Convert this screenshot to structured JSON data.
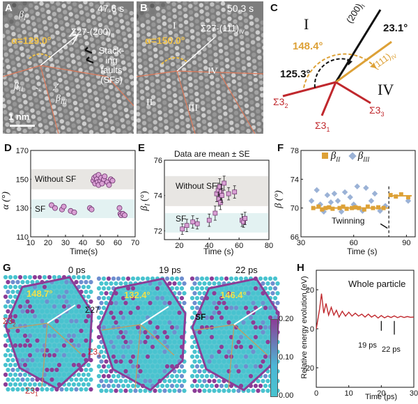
{
  "panels": {
    "A": {
      "label": "A",
      "time": "47.6 s",
      "alpha": "α=129.0°",
      "sigma": "Σ27-(200)",
      "sigma_sub": "II",
      "beta_I": "β",
      "beta_I_sub": "I",
      "beta_II": "β",
      "beta_II_sub": "II",
      "beta_III": "β",
      "beta_III_sub": "III",
      "sf_note": [
        "Stack-",
        "ing",
        "faults",
        "(SFs)"
      ],
      "scalebar": "1 nm"
    },
    "B": {
      "label": "B",
      "time": "50.3 s",
      "alpha": "α=150.0°",
      "sigma": "Σ27-(111)",
      "sigma_sub": "IV",
      "grains": [
        "I",
        "II",
        "III",
        "IV"
      ]
    },
    "C": {
      "label": "C",
      "grain_I": "I",
      "grain_IV": "IV",
      "plane1": "(200)",
      "plane1_sub": "I",
      "plane2": "(111)",
      "plane2_sub": "IV",
      "angle1": "23.1°",
      "angle2": "148.4°",
      "angle3": "125.3°",
      "s32": "Σ3",
      "s32_sub": "2",
      "s33": "Σ3",
      "s33_sub": "3",
      "s31": "Σ3",
      "s31_sub": "1"
    },
    "D": {
      "label": "D",
      "xlabel": "Time(s)",
      "ylabel": "α (°)",
      "region_top": "Without SF",
      "region_bottom": "SF",
      "xticks": [
        "10",
        "20",
        "30",
        "40",
        "50",
        "60",
        "70"
      ],
      "yticks": [
        "110",
        "130",
        "150",
        "170"
      ]
    },
    "E": {
      "label": "E",
      "title": "Data are mean ± SE",
      "xlabel": "Time (s)",
      "ylabel": "β",
      "ylabel_sub": "I",
      "ylabel_unit": " (°)",
      "region_top": "Without SF",
      "region_bottom": "SF",
      "xticks": [
        "20",
        "40",
        "60",
        "80"
      ],
      "yticks": [
        "72",
        "74",
        "76"
      ]
    },
    "F": {
      "label": "F",
      "xlabel": "Time (s)",
      "ylabel": "β (°)",
      "legend": [
        "β",
        "β"
      ],
      "legend_sub": [
        "II",
        "III"
      ],
      "annotation": "Twinning",
      "xticks": [
        "30",
        "60",
        "90"
      ],
      "yticks": [
        "66",
        "70",
        "74",
        "78"
      ]
    },
    "G": {
      "label": "G",
      "times": [
        "0 ps",
        "19 ps",
        "22 ps"
      ],
      "angles": [
        "148.7°",
        "132.4°",
        "146.4°"
      ],
      "sigma27": "Σ27",
      "sf": "SF",
      "s32": "Σ3",
      "s32_sub": "2",
      "s33": "Σ3",
      "s33_sub": "3",
      "s31": "Σ3",
      "s31_sub": "1",
      "cbar_ticks": [
        "0.20",
        "0.10",
        "0.00"
      ]
    },
    "H": {
      "label": "H",
      "title": "Whole particle",
      "ylabel": "Relative energy evolution (eV)",
      "xlabel": "Time (ps)",
      "ann1": "19 ps",
      "ann2": "22 ps",
      "xticks": [
        "0",
        "10",
        "20",
        "30"
      ],
      "yticks": [
        "20",
        "0",
        "-20"
      ]
    }
  },
  "colors": {
    "gold": "#dda137",
    "red": "#c0282d",
    "pink": "#d9a0d4",
    "blue": "#9bb2d6",
    "cyan": "#49c3cf",
    "purple": "#8c3d97"
  },
  "chart_data": [
    {
      "id": "D",
      "type": "scatter",
      "xlabel": "Time(s)",
      "ylabel": "α (°)",
      "xlim": [
        10,
        70
      ],
      "ylim": [
        110,
        170
      ],
      "series": [
        {
          "values": [
            [
              22,
              132
            ],
            [
              24,
              130
            ],
            [
              28,
              129
            ],
            [
              29,
              131
            ],
            [
              33,
              128
            ],
            [
              35,
              127
            ],
            [
              44,
              130
            ],
            [
              45,
              129
            ],
            [
              46,
              149
            ],
            [
              46.5,
              151
            ],
            [
              47,
              147
            ],
            [
              47.5,
              152
            ],
            [
              48,
              150
            ],
            [
              48.5,
              148
            ],
            [
              49,
              153
            ],
            [
              49,
              146
            ],
            [
              50,
              149
            ],
            [
              50.5,
              151
            ],
            [
              51,
              147
            ],
            [
              52,
              150
            ],
            [
              52.5,
              152
            ],
            [
              54,
              148
            ],
            [
              55,
              146
            ],
            [
              56,
              150
            ],
            [
              57,
              149
            ],
            [
              61,
              130
            ],
            [
              61.5,
              126
            ],
            [
              62,
              125
            ],
            [
              63,
              126
            ],
            [
              64,
              125
            ]
          ]
        }
      ]
    },
    {
      "id": "E",
      "type": "scatter",
      "title": "Data are mean ± SE",
      "xlabel": "Time (s)",
      "ylabel": "β (°)",
      "xlim": [
        10,
        80
      ],
      "ylim": [
        71.5,
        76
      ],
      "series": [
        {
          "values": [
            [
              22,
              72.1
            ],
            [
              25,
              72.3
            ],
            [
              29,
              72.5
            ],
            [
              32,
              72.4
            ],
            [
              40,
              72.6
            ],
            [
              44,
              73.0
            ],
            [
              45,
              74.1
            ],
            [
              46,
              74.3
            ],
            [
              46.5,
              73.8
            ],
            [
              47,
              74.5
            ],
            [
              47.5,
              73.6
            ],
            [
              48,
              74.2
            ],
            [
              48.5,
              74.0
            ],
            [
              50,
              74.7
            ],
            [
              53,
              74.1
            ],
            [
              57,
              74.2
            ],
            [
              62,
              72.6
            ],
            [
              63,
              72.5
            ],
            [
              64,
              72.7
            ]
          ],
          "errors": [
            0.3,
            0.35,
            0.35,
            0.3,
            0.35,
            0.4,
            0.45,
            0.4,
            0.4,
            0.45,
            0.4,
            0.45,
            0.4,
            0.4,
            0.35,
            0.35,
            0.35,
            0.3,
            0.35
          ]
        }
      ]
    },
    {
      "id": "F",
      "type": "scatter",
      "xlabel": "Time (s)",
      "ylabel": "β (°)",
      "xlim": [
        30,
        95
      ],
      "ylim": [
        66,
        78
      ],
      "series": [
        {
          "name": "β_II",
          "values": [
            [
              37,
              70
            ],
            [
              40,
              70.2
            ],
            [
              42,
              69.8
            ],
            [
              44,
              70
            ],
            [
              46,
              70.1
            ],
            [
              48,
              69.9
            ],
            [
              52,
              70
            ],
            [
              54,
              70.2
            ],
            [
              56,
              69.9
            ],
            [
              59,
              70
            ],
            [
              61,
              70.1
            ],
            [
              63,
              70
            ],
            [
              66,
              69.8
            ],
            [
              68,
              70.2
            ],
            [
              71,
              70
            ],
            [
              74,
              70.1
            ],
            [
              77,
              70
            ],
            [
              81,
              71.8
            ],
            [
              84,
              71.6
            ],
            [
              87,
              71.9
            ],
            [
              91,
              71.5
            ]
          ]
        },
        {
          "name": "β_III",
          "values": [
            [
              36,
              71
            ],
            [
              39,
              72.5
            ],
            [
              41,
              70.5
            ],
            [
              43,
              69.5
            ],
            [
              45,
              71.8
            ],
            [
              47,
              70.8
            ],
            [
              49,
              72
            ],
            [
              51,
              71
            ],
            [
              53,
              69.5
            ],
            [
              55,
              72.2
            ],
            [
              58,
              71.5
            ],
            [
              60,
              70.5
            ],
            [
              62,
              73
            ],
            [
              65,
              69.6
            ],
            [
              67,
              72.8
            ],
            [
              70,
              71
            ],
            [
              72,
              72
            ],
            [
              75,
              69.6
            ],
            [
              78,
              70.3
            ],
            [
              91,
              71
            ]
          ]
        }
      ],
      "twinning_x": 80
    },
    {
      "id": "H",
      "type": "line",
      "title": "Whole particle",
      "xlabel": "Time (ps)",
      "ylabel": "Relative energy evolution (eV)",
      "xlim": [
        0,
        30
      ],
      "ylim": [
        -30,
        30
      ],
      "series": [
        {
          "values": [
            [
              0,
              0
            ],
            [
              1,
              10
            ],
            [
              1.6,
              18
            ],
            [
              2.3,
              8
            ],
            [
              3,
              13
            ],
            [
              3.8,
              7
            ],
            [
              4.6,
              11
            ],
            [
              5.4,
              7
            ],
            [
              6.2,
              9.5
            ],
            [
              7.0,
              6
            ],
            [
              8,
              9
            ],
            [
              9,
              6.5
            ],
            [
              10,
              8.5
            ],
            [
              11,
              6.5
            ],
            [
              12,
              8
            ],
            [
              13,
              6.5
            ],
            [
              14,
              7.5
            ],
            [
              15,
              6
            ],
            [
              16,
              7.5
            ],
            [
              17,
              6
            ],
            [
              18,
              7
            ],
            [
              19,
              5.5
            ],
            [
              20,
              6.8
            ],
            [
              21,
              5.6
            ],
            [
              22,
              6.5
            ],
            [
              23,
              5.8
            ],
            [
              24,
              6.6
            ],
            [
              25,
              5.7
            ],
            [
              26,
              6.4
            ],
            [
              27,
              5.8
            ],
            [
              28,
              6.3
            ],
            [
              29,
              5.9
            ],
            [
              30,
              6
            ]
          ]
        }
      ]
    }
  ]
}
